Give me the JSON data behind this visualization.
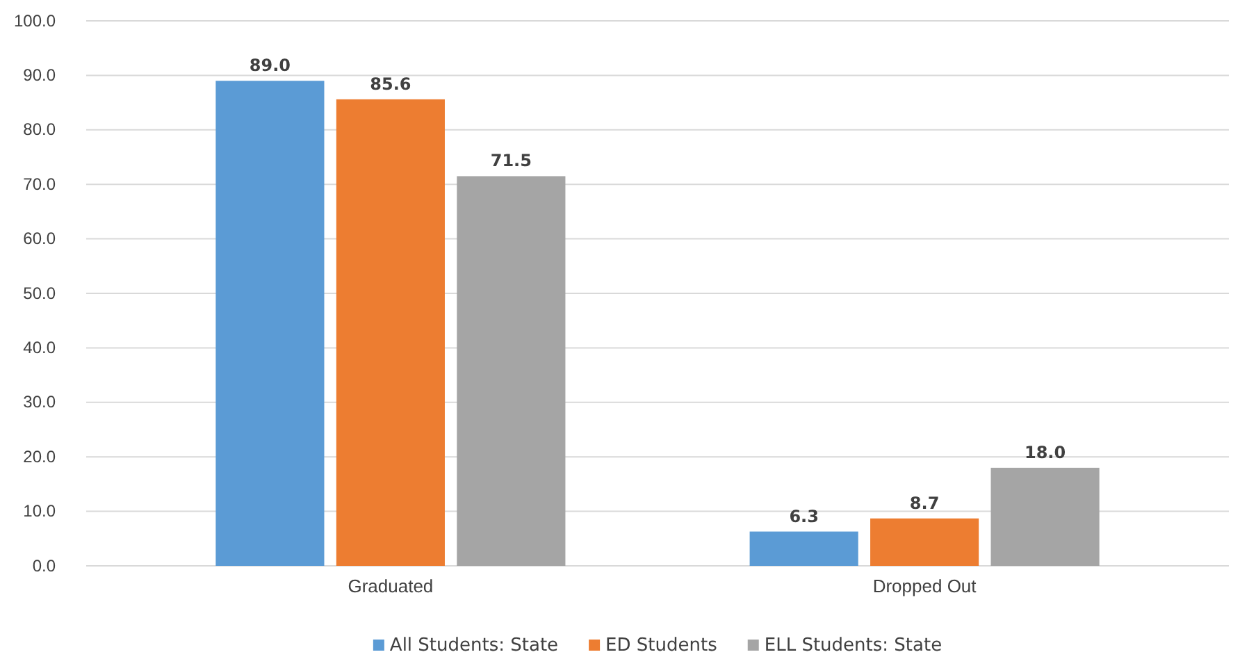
{
  "chart_data": {
    "type": "bar",
    "categories": [
      "Graduated",
      "Dropped Out"
    ],
    "series": [
      {
        "name": "All Students: State",
        "color": "#5b9bd5",
        "values": [
          89.0,
          6.3
        ],
        "value_labels": [
          "89.0",
          "6.3"
        ]
      },
      {
        "name": "ED Students",
        "color": "#ed7d31",
        "values": [
          85.6,
          8.7
        ],
        "value_labels": [
          "85.6",
          "8.7"
        ]
      },
      {
        "name": "ELL Students: State",
        "color": "#a5a5a5",
        "values": [
          71.5,
          18.0
        ],
        "value_labels": [
          "71.5",
          "18.0"
        ]
      }
    ],
    "ylim": [
      0,
      100
    ],
    "yticks": [
      {
        "value": 0,
        "label": "0.0"
      },
      {
        "value": 10,
        "label": "10.0"
      },
      {
        "value": 20,
        "label": "20.0"
      },
      {
        "value": 30,
        "label": "30.0"
      },
      {
        "value": 40,
        "label": "40.0"
      },
      {
        "value": 50,
        "label": "50.0"
      },
      {
        "value": 60,
        "label": "60.0"
      },
      {
        "value": 70,
        "label": "70.0"
      },
      {
        "value": 80,
        "label": "80.0"
      },
      {
        "value": 90,
        "label": "90.0"
      },
      {
        "value": 100,
        "label": "100.0"
      }
    ],
    "grid": "y",
    "legend": "bottom"
  }
}
